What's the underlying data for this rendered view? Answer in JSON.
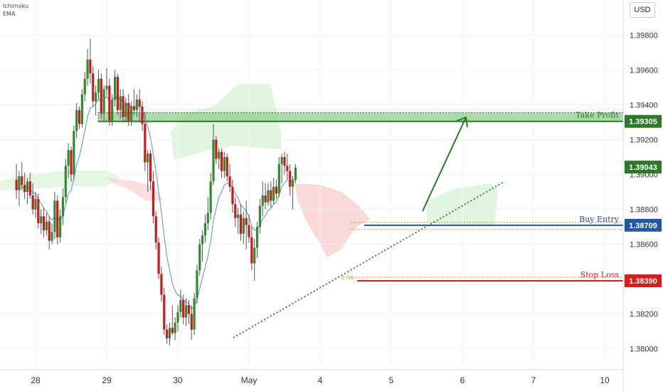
{
  "indicators": [
    "Ichimoku",
    "EMA"
  ],
  "currency": "USD",
  "colors": {
    "up": "#2e8b2e",
    "down": "#cc1818",
    "ema": "#6aa3dc",
    "take_profit": "#2a7a2a",
    "zone_fill": "#8fcf8a",
    "buy_entry": "#1f57a8",
    "stop_loss": "#d81b1b",
    "cloud_green": "#c9ecc6",
    "cloud_red": "#f6c9c9",
    "fib": "#d6902a",
    "trendline": "#2d8a2d"
  },
  "chart_data": {
    "type": "candlestick",
    "y_axis": {
      "range": [
        1.3788,
        1.3992
      ],
      "ticks": [
        "1.39800",
        "1.39600",
        "1.39400",
        "1.39200",
        "1.39000",
        "1.38800",
        "1.38600",
        "1.38200",
        "1.38000"
      ]
    },
    "x_axis": {
      "labels": [
        "28",
        "29",
        "30",
        "May",
        "4",
        "5",
        "6",
        "7",
        "10"
      ]
    },
    "levels": [
      {
        "name": "Take Profit",
        "value": "1.39305"
      },
      {
        "name": "Current Price",
        "value": "1.39043"
      },
      {
        "name": "Buy Entry",
        "value": "1.38709"
      },
      {
        "name": "Stop Loss",
        "value": "1.38390"
      }
    ],
    "take_profit_zone": [
      1.39305,
      1.39355
    ],
    "fib_labels": [
      "0.786"
    ],
    "candles": [
      [
        1.3897,
        1.3906,
        1.3886,
        1.3891
      ],
      [
        1.3891,
        1.3902,
        1.3882,
        1.3899
      ],
      [
        1.3899,
        1.3907,
        1.3891,
        1.3894
      ],
      [
        1.3894,
        1.3901,
        1.3886,
        1.389
      ],
      [
        1.389,
        1.3898,
        1.3883,
        1.3896
      ],
      [
        1.3896,
        1.3901,
        1.3886,
        1.3888
      ],
      [
        1.3888,
        1.3895,
        1.3877,
        1.388
      ],
      [
        1.388,
        1.389,
        1.3875,
        1.3886
      ],
      [
        1.3886,
        1.3889,
        1.3869,
        1.3872
      ],
      [
        1.3872,
        1.388,
        1.3866,
        1.3876
      ],
      [
        1.3876,
        1.3881,
        1.3864,
        1.3868
      ],
      [
        1.3868,
        1.3878,
        1.3865,
        1.3873
      ],
      [
        1.3873,
        1.3876,
        1.3857,
        1.3862
      ],
      [
        1.3862,
        1.3872,
        1.386,
        1.3867
      ],
      [
        1.3867,
        1.389,
        1.3863,
        1.3885
      ],
      [
        1.3885,
        1.3888,
        1.386,
        1.3864
      ],
      [
        1.3864,
        1.388,
        1.3861,
        1.3876
      ],
      [
        1.3876,
        1.3892,
        1.3871,
        1.3887
      ],
      [
        1.3887,
        1.3909,
        1.3884,
        1.3905
      ],
      [
        1.3905,
        1.3918,
        1.3898,
        1.3914
      ],
      [
        1.3914,
        1.3916,
        1.3896,
        1.39
      ],
      [
        1.39,
        1.3928,
        1.3897,
        1.3925
      ],
      [
        1.3925,
        1.3941,
        1.3921,
        1.3937
      ],
      [
        1.3937,
        1.3939,
        1.3926,
        1.3929
      ],
      [
        1.3929,
        1.3949,
        1.3927,
        1.3946
      ],
      [
        1.3946,
        1.3959,
        1.3942,
        1.3955
      ],
      [
        1.3955,
        1.3972,
        1.3951,
        1.3966
      ],
      [
        1.3966,
        1.3978,
        1.3952,
        1.3958
      ],
      [
        1.3958,
        1.3962,
        1.3939,
        1.3942
      ],
      [
        1.3942,
        1.3951,
        1.3934,
        1.3947
      ],
      [
        1.3947,
        1.396,
        1.3943,
        1.3955
      ],
      [
        1.3955,
        1.3958,
        1.3932,
        1.3935
      ],
      [
        1.3935,
        1.3951,
        1.3931,
        1.3949
      ],
      [
        1.3949,
        1.3961,
        1.3945,
        1.3951
      ],
      [
        1.3951,
        1.3955,
        1.3928,
        1.3931
      ],
      [
        1.3931,
        1.3946,
        1.3928,
        1.3943
      ],
      [
        1.3943,
        1.396,
        1.3939,
        1.3956
      ],
      [
        1.3956,
        1.3958,
        1.3934,
        1.3937
      ],
      [
        1.3937,
        1.3949,
        1.3932,
        1.3945
      ],
      [
        1.3945,
        1.3949,
        1.393,
        1.3933
      ],
      [
        1.3933,
        1.3944,
        1.393,
        1.3941
      ],
      [
        1.3941,
        1.3946,
        1.3928,
        1.3931
      ],
      [
        1.3931,
        1.3942,
        1.3928,
        1.3939
      ],
      [
        1.3939,
        1.3949,
        1.3934,
        1.3937
      ],
      [
        1.3937,
        1.3946,
        1.3933,
        1.3943
      ],
      [
        1.3943,
        1.3949,
        1.393,
        1.3939
      ],
      [
        1.3939,
        1.3942,
        1.3925,
        1.3929
      ],
      [
        1.3929,
        1.3936,
        1.3902,
        1.3907
      ],
      [
        1.3907,
        1.3914,
        1.389,
        1.3912
      ],
      [
        1.3912,
        1.3914,
        1.3891,
        1.3896
      ],
      [
        1.3896,
        1.3902,
        1.3872,
        1.3876
      ],
      [
        1.3876,
        1.3879,
        1.3857,
        1.3861
      ],
      [
        1.3861,
        1.3864,
        1.384,
        1.3843
      ],
      [
        1.3843,
        1.3847,
        1.3827,
        1.3831
      ],
      [
        1.3831,
        1.3835,
        1.3808,
        1.3811
      ],
      [
        1.3811,
        1.3814,
        1.3803,
        1.3806
      ],
      [
        1.3806,
        1.3815,
        1.3802,
        1.3812
      ],
      [
        1.3812,
        1.3825,
        1.3808,
        1.3809
      ],
      [
        1.3809,
        1.3818,
        1.3805,
        1.3815
      ],
      [
        1.3815,
        1.3825,
        1.381,
        1.3821
      ],
      [
        1.3821,
        1.3834,
        1.3818,
        1.3828
      ],
      [
        1.3828,
        1.3831,
        1.3814,
        1.3818
      ],
      [
        1.3818,
        1.3829,
        1.3813,
        1.3825
      ],
      [
        1.3825,
        1.3828,
        1.3814,
        1.382
      ],
      [
        1.382,
        1.3825,
        1.3805,
        1.3811
      ],
      [
        1.3811,
        1.3832,
        1.3808,
        1.3829
      ],
      [
        1.3829,
        1.3848,
        1.3826,
        1.3845
      ],
      [
        1.3845,
        1.3863,
        1.3842,
        1.386
      ],
      [
        1.386,
        1.3868,
        1.385,
        1.3865
      ],
      [
        1.3865,
        1.3877,
        1.3861,
        1.3872
      ],
      [
        1.3872,
        1.3887,
        1.3868,
        1.3878
      ],
      [
        1.3878,
        1.3901,
        1.3874,
        1.3896
      ],
      [
        1.3896,
        1.3929,
        1.3894,
        1.392
      ],
      [
        1.392,
        1.3922,
        1.3906,
        1.3909
      ],
      [
        1.3909,
        1.3915,
        1.3903,
        1.3913
      ],
      [
        1.3913,
        1.3915,
        1.3898,
        1.3902
      ],
      [
        1.3902,
        1.3913,
        1.3898,
        1.391
      ],
      [
        1.391,
        1.3912,
        1.3896,
        1.3899
      ],
      [
        1.3899,
        1.3906,
        1.389,
        1.3893
      ],
      [
        1.3893,
        1.3897,
        1.3878,
        1.3883
      ],
      [
        1.3883,
        1.3887,
        1.387,
        1.3875
      ],
      [
        1.3875,
        1.3881,
        1.3866,
        1.3877
      ],
      [
        1.3877,
        1.3883,
        1.3862,
        1.3866
      ],
      [
        1.3866,
        1.3879,
        1.386,
        1.3875
      ],
      [
        1.3875,
        1.3885,
        1.3857,
        1.3871
      ],
      [
        1.3871,
        1.3877,
        1.3861,
        1.3864
      ],
      [
        1.3864,
        1.387,
        1.3845,
        1.3849
      ],
      [
        1.3849,
        1.3863,
        1.3839,
        1.3858
      ],
      [
        1.3858,
        1.3873,
        1.3852,
        1.387
      ],
      [
        1.387,
        1.3886,
        1.3866,
        1.3882
      ],
      [
        1.3882,
        1.3896,
        1.3876,
        1.3888
      ],
      [
        1.3888,
        1.3895,
        1.388,
        1.3884
      ],
      [
        1.3884,
        1.3895,
        1.3882,
        1.3891
      ],
      [
        1.3891,
        1.3896,
        1.3881,
        1.3885
      ],
      [
        1.3885,
        1.3898,
        1.3883,
        1.3893
      ],
      [
        1.3893,
        1.3897,
        1.3886,
        1.3889
      ],
      [
        1.3889,
        1.391,
        1.3887,
        1.3906
      ],
      [
        1.3906,
        1.3912,
        1.3895,
        1.391
      ],
      [
        1.391,
        1.3913,
        1.39,
        1.3905
      ],
      [
        1.3905,
        1.3912,
        1.3897,
        1.3902
      ],
      [
        1.3902,
        1.3906,
        1.3888,
        1.3893
      ],
      [
        1.3893,
        1.3899,
        1.388,
        1.3897
      ],
      [
        1.3897,
        1.3906,
        1.3895,
        1.3904
      ]
    ]
  }
}
